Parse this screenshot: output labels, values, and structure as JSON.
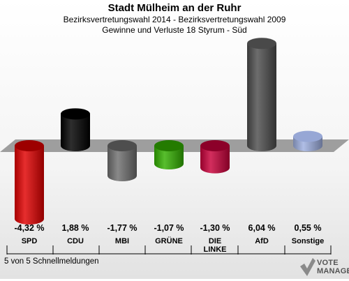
{
  "header": {
    "title": "Stadt Mülheim an der Ruhr",
    "subtitle1": "Bezirksvertretungswahl 2014 - Bezirksvertretungswahl 2009",
    "subtitle2": "Gewinne und Verluste 18 Styrum - Süd"
  },
  "footer": {
    "status": "5 von 5 Schnellmeldungen"
  },
  "logo": {
    "line1": "VOTE",
    "line2": "MANAGER"
  },
  "chart_data": {
    "type": "bar",
    "categories": [
      "SPD",
      "CDU",
      "MBI",
      "GRÜNE",
      "DIE LINKE",
      "AfD",
      "Sonstige"
    ],
    "category_lines": [
      [
        "SPD"
      ],
      [
        "CDU"
      ],
      [
        "MBI"
      ],
      [
        "GRÜNE"
      ],
      [
        "DIE",
        "LINKE"
      ],
      [
        "AfD"
      ],
      [
        "Sonstige"
      ]
    ],
    "values": [
      -4.32,
      1.88,
      -1.77,
      -1.07,
      -1.3,
      6.04,
      0.55
    ],
    "value_labels": [
      "-4,32 %",
      "1,88 %",
      "-1,77 %",
      "-1,07 %",
      "-1,30 %",
      "6,04 %",
      "0,55 %"
    ],
    "colors": [
      "#e00000",
      "#000000",
      "#6f6f6f",
      "#33b000",
      "#c8003a",
      "#4d4d4d",
      "#9fb0e0"
    ],
    "title": "Stadt Mülheim an der Ruhr",
    "xlabel": "",
    "ylabel": ""
  }
}
